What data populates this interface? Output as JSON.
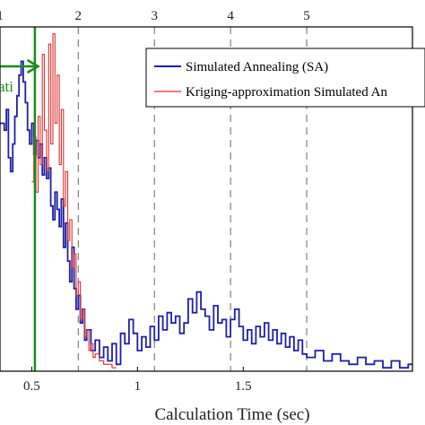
{
  "chart_data": {
    "type": "line",
    "xlabel": "Calculation Time (sec)",
    "xlim": [
      0.35,
      2.3
    ],
    "ylim": [
      0,
      1
    ],
    "x_ticks": [
      0.5,
      1,
      1.5
    ],
    "x_tick_labels": [
      "0.5",
      "1",
      "1.5"
    ],
    "top_axis": {
      "ticks": [
        0.35,
        0.72,
        1.08,
        1.44,
        1.8
      ],
      "labels": [
        "1",
        "2",
        "3",
        "4",
        "5"
      ]
    },
    "marker_line": {
      "x": 0.515,
      "color": "#1a8c1a",
      "arrow_to": 0.53,
      "label": "ati"
    },
    "legend": {
      "position": "top-right",
      "entries": [
        {
          "label": "Simulated Annealing (SA)",
          "color": "#1f1fa8"
        },
        {
          "label": "Kriging-approximation Simulated An",
          "color": "#e03030"
        }
      ]
    },
    "series": [
      {
        "name": "Simulated Annealing (SA)",
        "color": "#1f1fa8",
        "x": [
          0.35,
          0.37,
          0.38,
          0.39,
          0.4,
          0.41,
          0.42,
          0.43,
          0.44,
          0.45,
          0.46,
          0.47,
          0.48,
          0.49,
          0.5,
          0.51,
          0.52,
          0.53,
          0.54,
          0.55,
          0.56,
          0.57,
          0.58,
          0.59,
          0.6,
          0.61,
          0.62,
          0.63,
          0.64,
          0.65,
          0.66,
          0.67,
          0.68,
          0.69,
          0.7,
          0.71,
          0.72,
          0.73,
          0.74,
          0.75,
          0.76,
          0.78,
          0.8,
          0.82,
          0.84,
          0.86,
          0.88,
          0.9,
          0.92,
          0.94,
          0.96,
          0.98,
          1.0,
          1.02,
          1.04,
          1.06,
          1.08,
          1.1,
          1.12,
          1.14,
          1.16,
          1.18,
          1.2,
          1.22,
          1.24,
          1.26,
          1.28,
          1.3,
          1.32,
          1.34,
          1.36,
          1.38,
          1.4,
          1.42,
          1.44,
          1.46,
          1.48,
          1.5,
          1.52,
          1.54,
          1.56,
          1.58,
          1.6,
          1.62,
          1.64,
          1.66,
          1.68,
          1.7,
          1.72,
          1.74,
          1.76,
          1.78,
          1.8,
          1.84,
          1.88,
          1.92,
          1.96,
          2.0,
          2.04,
          2.08,
          2.12,
          2.16,
          2.2,
          2.24,
          2.28,
          2.3
        ],
        "y": [
          0.72,
          0.7,
          0.76,
          0.62,
          0.58,
          0.66,
          0.74,
          0.8,
          0.86,
          0.9,
          0.84,
          0.78,
          0.7,
          0.66,
          0.72,
          0.63,
          0.67,
          0.62,
          0.66,
          0.57,
          0.62,
          0.56,
          0.59,
          0.48,
          0.44,
          0.52,
          0.47,
          0.42,
          0.5,
          0.36,
          0.43,
          0.32,
          0.26,
          0.36,
          0.24,
          0.18,
          0.22,
          0.14,
          0.18,
          0.09,
          0.12,
          0.06,
          0.09,
          0.04,
          0.07,
          0.03,
          0.08,
          0.02,
          0.11,
          0.08,
          0.15,
          0.11,
          0.06,
          0.1,
          0.07,
          0.13,
          0.09,
          0.16,
          0.12,
          0.17,
          0.14,
          0.16,
          0.11,
          0.14,
          0.21,
          0.17,
          0.23,
          0.18,
          0.16,
          0.12,
          0.19,
          0.14,
          0.15,
          0.1,
          0.15,
          0.18,
          0.13,
          0.09,
          0.12,
          0.08,
          0.13,
          0.1,
          0.14,
          0.09,
          0.12,
          0.08,
          0.11,
          0.07,
          0.1,
          0.06,
          0.09,
          0.05,
          0.04,
          0.06,
          0.03,
          0.05,
          0.03,
          0.02,
          0.04,
          0.02,
          0.03,
          0.01,
          0.03,
          0.01,
          0.02,
          0.02
        ]
      },
      {
        "name": "Kriging-approximation Simulated An",
        "color": "#e03030",
        "x": [
          0.5,
          0.51,
          0.52,
          0.53,
          0.54,
          0.55,
          0.56,
          0.57,
          0.58,
          0.59,
          0.6,
          0.61,
          0.62,
          0.63,
          0.64,
          0.65,
          0.66,
          0.67,
          0.68,
          0.69,
          0.7,
          0.71,
          0.72,
          0.73,
          0.74,
          0.75,
          0.76,
          0.77,
          0.78,
          0.79,
          0.8,
          0.82,
          0.84,
          0.86,
          0.88,
          0.9
        ],
        "y": [
          0.55,
          0.68,
          0.52,
          0.74,
          0.6,
          0.92,
          0.7,
          0.58,
          0.95,
          0.66,
          0.98,
          0.72,
          0.86,
          0.6,
          0.76,
          0.48,
          0.58,
          0.38,
          0.44,
          0.3,
          0.34,
          0.22,
          0.26,
          0.15,
          0.18,
          0.1,
          0.12,
          0.06,
          0.08,
          0.04,
          0.05,
          0.03,
          0.02,
          0.02,
          0.01,
          0.01
        ]
      }
    ]
  }
}
